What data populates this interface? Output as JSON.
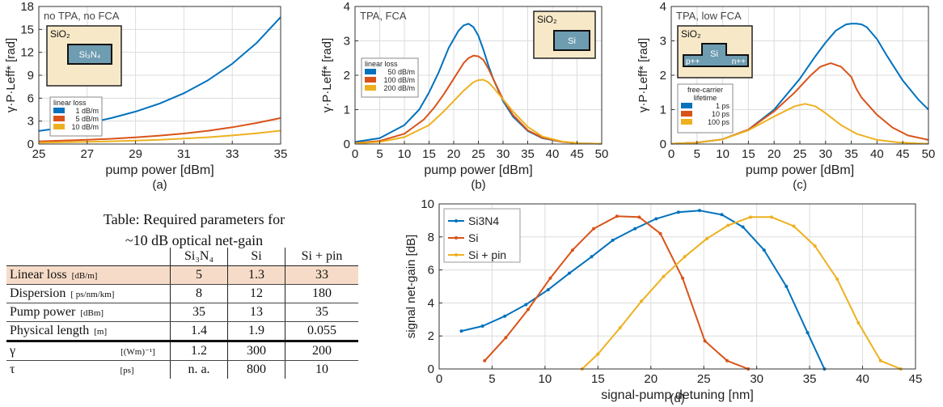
{
  "chart_data": [
    {
      "id": "a",
      "type": "line",
      "panel_label": "(a)",
      "corner_text": "no TPA, no FCA",
      "xlabel": "pump power [dBm]",
      "ylabel": "γ·P·Leff* [rad]",
      "xlim": [
        25,
        35
      ],
      "ylim": [
        0,
        18
      ],
      "xticks": [
        25,
        27,
        29,
        31,
        33,
        35
      ],
      "yticks": [
        0,
        3,
        6,
        9,
        12,
        15,
        18
      ],
      "grid": true,
      "inset": {
        "outer": "SiO₂",
        "core": "Si₃N₄"
      },
      "legend": {
        "title": "linear loss",
        "placement": "left",
        "entries": [
          "1 dB/m",
          "5 dB/m",
          "10 dB/m"
        ]
      },
      "series": [
        {
          "name": "1 dB/m",
          "color": "#0072BD",
          "x": [
            25,
            26,
            27,
            28,
            29,
            30,
            31,
            32,
            33,
            34,
            35
          ],
          "y": [
            1.7,
            2.15,
            2.7,
            3.4,
            4.25,
            5.3,
            6.65,
            8.35,
            10.5,
            13.2,
            16.6
          ]
        },
        {
          "name": "5 dB/m",
          "color": "#D95319",
          "x": [
            25,
            26,
            27,
            28,
            29,
            30,
            31,
            32,
            33,
            34,
            35
          ],
          "y": [
            0.35,
            0.44,
            0.55,
            0.69,
            0.87,
            1.1,
            1.38,
            1.74,
            2.19,
            2.75,
            3.4
          ]
        },
        {
          "name": "10 dB/m",
          "color": "#EDB120",
          "x": [
            25,
            26,
            27,
            28,
            29,
            30,
            31,
            32,
            33,
            34,
            35
          ],
          "y": [
            0.18,
            0.23,
            0.29,
            0.36,
            0.45,
            0.56,
            0.71,
            0.89,
            1.12,
            1.41,
            1.75
          ]
        }
      ]
    },
    {
      "id": "b",
      "type": "line",
      "panel_label": "(b)",
      "corner_text": "TPA, FCA",
      "xlabel": "pump power [dBm]",
      "ylabel": "γ·P·Leff* [rad]",
      "xlim": [
        0,
        50
      ],
      "ylim": [
        0,
        4
      ],
      "xticks": [
        0,
        5,
        10,
        15,
        20,
        25,
        30,
        35,
        40,
        45,
        50
      ],
      "yticks": [
        0,
        1,
        2,
        3,
        4
      ],
      "grid": true,
      "inset": {
        "outer": "SiO₂",
        "core": "Si"
      },
      "legend": {
        "title": "linear loss",
        "placement": "left",
        "entries": [
          "50 dB/m",
          "100 dB/m",
          "200 dB/m"
        ]
      },
      "series": [
        {
          "name": "50 dB/m",
          "color": "#0072BD",
          "x": [
            0,
            5,
            10,
            13,
            15,
            17,
            19,
            21,
            22,
            23,
            24,
            25,
            26,
            27,
            28,
            30,
            32,
            35,
            38,
            42,
            46,
            50
          ],
          "y": [
            0.06,
            0.17,
            0.55,
            1.0,
            1.5,
            2.1,
            2.8,
            3.3,
            3.45,
            3.5,
            3.4,
            3.15,
            2.75,
            2.3,
            1.9,
            1.25,
            0.8,
            0.38,
            0.17,
            0.06,
            0.02,
            0.01
          ]
        },
        {
          "name": "100 dB/m",
          "color": "#D95319",
          "x": [
            0,
            5,
            10,
            14,
            16,
            18,
            20,
            22,
            23,
            24,
            25,
            26,
            27,
            28,
            30,
            32,
            35,
            38,
            42,
            46,
            50
          ],
          "y": [
            0.03,
            0.09,
            0.3,
            0.72,
            1.05,
            1.45,
            1.9,
            2.35,
            2.5,
            2.57,
            2.55,
            2.45,
            2.2,
            1.9,
            1.3,
            0.85,
            0.4,
            0.18,
            0.06,
            0.02,
            0.01
          ]
        },
        {
          "name": "200 dB/m",
          "color": "#EDB120",
          "x": [
            0,
            5,
            10,
            15,
            18,
            20,
            22,
            24,
            25,
            26,
            27,
            28,
            30,
            32,
            35,
            38,
            42,
            46,
            50
          ],
          "y": [
            0.02,
            0.06,
            0.2,
            0.55,
            0.95,
            1.25,
            1.55,
            1.8,
            1.86,
            1.87,
            1.8,
            1.65,
            1.3,
            0.95,
            0.5,
            0.22,
            0.07,
            0.02,
            0.01
          ]
        }
      ]
    },
    {
      "id": "c",
      "type": "line",
      "panel_label": "(c)",
      "corner_text": "TPA, low FCA",
      "xlabel": "pump power [dBm]",
      "ylabel": "γ·P·Leff* [rad]",
      "xlim": [
        0,
        50
      ],
      "ylim": [
        0,
        4
      ],
      "xticks": [
        0,
        5,
        10,
        15,
        20,
        25,
        30,
        35,
        40,
        45,
        50
      ],
      "yticks": [
        0,
        1,
        2,
        3,
        4
      ],
      "grid": true,
      "inset": {
        "outer": "SiO₂",
        "core": "Si",
        "p_label": "p++",
        "n_label": "n++"
      },
      "legend": {
        "title": "free-carrier lifetime",
        "placement": "left",
        "entries": [
          "1 ps",
          "10 ps",
          "100 ps"
        ]
      },
      "series": [
        {
          "name": "1 ps",
          "color": "#0072BD",
          "x": [
            0,
            5,
            10,
            15,
            20,
            25,
            28,
            30,
            32,
            34,
            35,
            36,
            37,
            38,
            40,
            42,
            45,
            48,
            50
          ],
          "y": [
            0.01,
            0.04,
            0.14,
            0.42,
            1.0,
            1.9,
            2.55,
            2.95,
            3.3,
            3.48,
            3.5,
            3.5,
            3.48,
            3.4,
            3.05,
            2.55,
            1.85,
            1.3,
            1.0
          ]
        },
        {
          "name": "10 ps",
          "color": "#D95319",
          "x": [
            0,
            5,
            10,
            15,
            20,
            24,
            27,
            29,
            31,
            33,
            35,
            36,
            37,
            40,
            43,
            46,
            50
          ],
          "y": [
            0.01,
            0.04,
            0.14,
            0.42,
            0.95,
            1.5,
            1.98,
            2.25,
            2.35,
            2.25,
            1.95,
            1.6,
            1.35,
            0.85,
            0.48,
            0.25,
            0.12
          ]
        },
        {
          "name": "100 ps",
          "color": "#EDB120",
          "x": [
            0,
            5,
            10,
            15,
            20,
            24,
            26,
            28,
            30,
            33,
            36,
            40,
            44,
            48,
            50
          ],
          "y": [
            0.01,
            0.04,
            0.14,
            0.4,
            0.8,
            1.1,
            1.17,
            1.1,
            0.9,
            0.55,
            0.3,
            0.12,
            0.05,
            0.02,
            0.01
          ]
        }
      ]
    },
    {
      "id": "d",
      "type": "line",
      "panel_label": "(d)",
      "xlabel": "signal-pump detuning [nm]",
      "ylabel": "signal net-gain [dB]",
      "xlim": [
        0,
        45
      ],
      "ylim": [
        0,
        10
      ],
      "xticks": [
        0,
        5,
        10,
        15,
        20,
        25,
        30,
        35,
        40,
        45
      ],
      "yticks": [
        0,
        2,
        4,
        6,
        8,
        10
      ],
      "grid": true,
      "legend": {
        "placement": "top-left",
        "entries": [
          "Si3N4",
          "Si",
          "Si + pin"
        ]
      },
      "series": [
        {
          "name": "Si3N4",
          "color": "#0072BD",
          "x": [
            2.1,
            4.1,
            6.2,
            8.2,
            10.3,
            12.3,
            14.4,
            16.4,
            18.5,
            20.5,
            22.6,
            24.6,
            26.7,
            28.7,
            30.7,
            32.8,
            34.8,
            36.4
          ],
          "y": [
            2.3,
            2.6,
            3.2,
            3.9,
            4.8,
            5.8,
            6.8,
            7.8,
            8.5,
            9.1,
            9.5,
            9.6,
            9.35,
            8.6,
            7.2,
            5.0,
            2.2,
            0.0
          ]
        },
        {
          "name": "Si",
          "color": "#D95319",
          "x": [
            4.3,
            6.3,
            8.4,
            10.5,
            12.6,
            14.6,
            16.8,
            18.9,
            20.9,
            23.0,
            25.1,
            27.2,
            29.2
          ],
          "y": [
            0.5,
            1.9,
            3.6,
            5.5,
            7.2,
            8.5,
            9.25,
            9.2,
            8.2,
            5.5,
            1.7,
            0.5,
            0.0
          ]
        },
        {
          "name": "Si + pin",
          "color": "#EDB120",
          "x": [
            13.5,
            15.0,
            17.1,
            19.1,
            21.2,
            23.2,
            25.3,
            27.3,
            29.4,
            31.4,
            33.5,
            35.5,
            37.6,
            39.6,
            41.7,
            43.6
          ],
          "y": [
            0.0,
            0.9,
            2.5,
            4.1,
            5.6,
            6.8,
            7.9,
            8.7,
            9.2,
            9.2,
            8.65,
            7.45,
            5.45,
            2.8,
            0.5,
            0.0
          ]
        }
      ]
    }
  ],
  "table": {
    "caption_line1": "Table: Required parameters for",
    "caption_line2": "~10 dB optical net-gain",
    "columns": [
      "Si₃N₄",
      "Si",
      "Si + pin"
    ],
    "rows": [
      {
        "label": "Linear loss",
        "unit": "[dB/m]",
        "values": [
          "5",
          "1.3",
          "33"
        ]
      },
      {
        "label": "Dispersion",
        "unit": "[ ps/nm/km]",
        "values": [
          "8",
          "12",
          "180"
        ]
      },
      {
        "label": "Pump power",
        "unit": "[dBm]",
        "values": [
          "35",
          "13",
          "35"
        ]
      },
      {
        "label": "Physical length",
        "unit": "[m]",
        "values": [
          "1.4",
          "1.9",
          "0.055"
        ]
      },
      {
        "label": "γ",
        "unit": "[(Wm)⁻¹]",
        "values": [
          "1.2",
          "300",
          "200"
        ]
      },
      {
        "label": "τ",
        "unit": "[ps]",
        "values": [
          "n. a.",
          "800",
          "10"
        ]
      }
    ],
    "highlight_color": "#f6dcc8"
  }
}
